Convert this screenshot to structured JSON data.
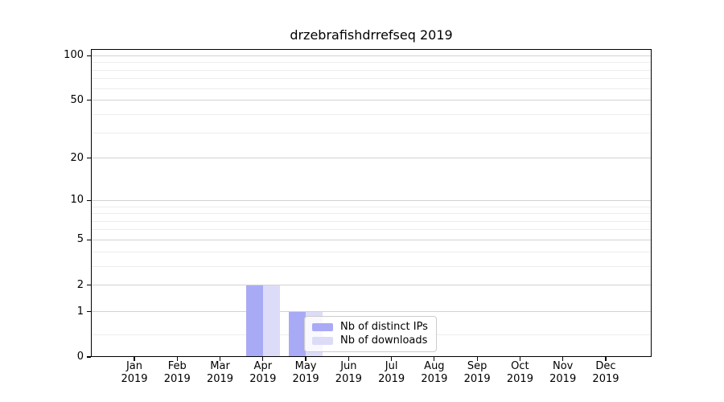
{
  "title": "drzebrafishdrrefseq 2019",
  "chart_data": {
    "type": "bar",
    "title": "drzebrafishdrrefseq 2019",
    "categories": [
      "Jan",
      "Feb",
      "Mar",
      "Apr",
      "May",
      "Jun",
      "Jul",
      "Aug",
      "Sep",
      "Oct",
      "Nov",
      "Dec"
    ],
    "x_year_label": "2019",
    "series": [
      {
        "name": "Nb of distinct IPs",
        "color": "#a9aaf6",
        "values": [
          0,
          0,
          0,
          2,
          1,
          0,
          0,
          0,
          0,
          0,
          0,
          0
        ]
      },
      {
        "name": "Nb of downloads",
        "color": "#dcdcf9",
        "values": [
          0,
          0,
          0,
          2,
          1,
          0,
          0,
          0,
          0,
          0,
          0,
          0
        ]
      }
    ],
    "xlabel": "",
    "ylabel": "",
    "yscale": "log10(1+x)",
    "ylim": [
      0,
      111
    ],
    "y_major_ticks": [
      0,
      1,
      2,
      5,
      10,
      20,
      50,
      100
    ],
    "y_minor_gridlines": [
      0.4,
      3,
      4,
      6,
      7,
      8,
      9,
      30,
      40,
      60,
      70,
      80,
      90
    ],
    "grid": "horizontal",
    "legend_position": "lower-center",
    "colors": {
      "background": "#ffffff",
      "spine": "#000000",
      "grid_major": "#d2d2d2",
      "grid_minor": "#ededed",
      "tick_text": "#000000",
      "legend_border": "#cccccc"
    }
  },
  "legend": {
    "entries": [
      "Nb of distinct IPs",
      "Nb of downloads"
    ]
  }
}
